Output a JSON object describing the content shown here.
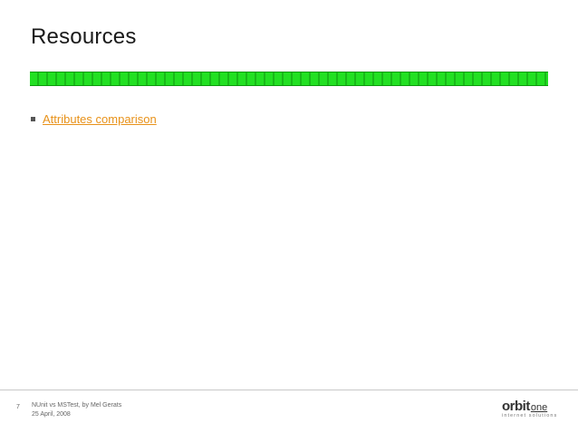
{
  "slide": {
    "title": "Resources",
    "bullets": [
      {
        "label": "Attributes comparison"
      }
    ],
    "link_color": "#e8921a",
    "bar_color": "#22e022"
  },
  "footer": {
    "slide_number": "7",
    "line1": "NUnit vs MSTest, by Mel Gerats",
    "line2": "25 April, 2008"
  },
  "logo": {
    "main": "orbit",
    "one": "one",
    "tagline": "internet solutions"
  }
}
